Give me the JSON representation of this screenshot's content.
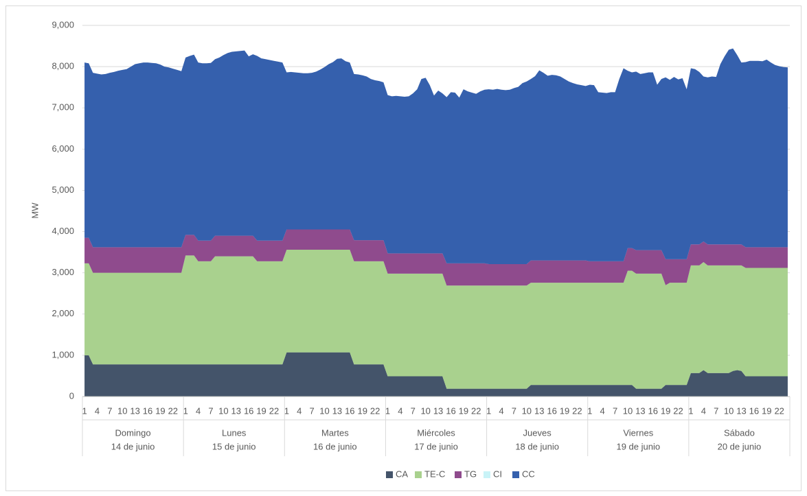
{
  "chart_data": {
    "type": "stacked_area",
    "y_label": "MW",
    "ylim": [
      0,
      9000
    ],
    "yticks": [
      0,
      {
        "value": 1000,
        "label": "1,000"
      },
      {
        "value": 2000,
        "label": "2,000"
      },
      {
        "value": 3000,
        "label": "3,000"
      },
      {
        "value": 4000,
        "label": "4,000"
      },
      {
        "value": 5000,
        "label": "5,000"
      },
      {
        "value": 6000,
        "label": "6,000"
      },
      {
        "value": 7000,
        "label": "7,000"
      },
      {
        "value": 8000,
        "label": "8,000"
      },
      {
        "value": 9000,
        "label": "9,000"
      }
    ],
    "grid": true,
    "legend": "bottom",
    "groups": [
      [
        "Domingo",
        "14 de junio"
      ],
      [
        "Lunes",
        "15 de junio"
      ],
      [
        "Martes",
        "16 de junio"
      ],
      [
        "Miércoles",
        "17 de junio"
      ],
      [
        "Jueves",
        "18 de junio"
      ],
      [
        "Viernes",
        "19 de junio"
      ],
      [
        "Sábado",
        "20 de junio"
      ]
    ],
    "categories": [
      "1",
      null,
      null,
      "4",
      null,
      null,
      "7",
      null,
      null,
      "10",
      null,
      null,
      "13",
      null,
      null,
      "16",
      null,
      null,
      "19",
      null,
      null,
      "22",
      null,
      null,
      "1",
      null,
      null,
      "4",
      null,
      null,
      "7",
      null,
      null,
      "10",
      null,
      null,
      "13",
      null,
      null,
      "16",
      null,
      null,
      "19",
      null,
      null,
      "22",
      null,
      null,
      "1",
      null,
      null,
      "4",
      null,
      null,
      "7",
      null,
      null,
      "10",
      null,
      null,
      "13",
      null,
      null,
      "16",
      null,
      null,
      "19",
      null,
      null,
      "22",
      null,
      null,
      "1",
      null,
      null,
      "4",
      null,
      null,
      "7",
      null,
      null,
      "10",
      null,
      null,
      "13",
      null,
      null,
      "16",
      null,
      null,
      "19",
      null,
      null,
      "22",
      null,
      null,
      "1",
      null,
      null,
      "4",
      null,
      null,
      "7",
      null,
      null,
      "10",
      null,
      null,
      "13",
      null,
      null,
      "16",
      null,
      null,
      "19",
      null,
      null,
      "22",
      null,
      null,
      "1",
      null,
      null,
      "4",
      null,
      null,
      "7",
      null,
      null,
      "10",
      null,
      null,
      "13",
      null,
      null,
      "16",
      null,
      null,
      "19",
      null,
      null,
      "22",
      null,
      null,
      "1",
      null,
      null,
      "4",
      null,
      null,
      "7",
      null,
      null,
      "10",
      null,
      null,
      "13",
      null,
      null,
      "16",
      null,
      null,
      "19",
      null,
      null,
      "22",
      null,
      null
    ],
    "series": [
      {
        "name": "CA",
        "color": "#44546a",
        "values": [
          1000,
          1000,
          780,
          780,
          780,
          780,
          780,
          780,
          780,
          780,
          780,
          780,
          780,
          780,
          780,
          780,
          780,
          780,
          780,
          780,
          780,
          780,
          780,
          780,
          780,
          780,
          780,
          780,
          780,
          780,
          780,
          780,
          780,
          780,
          780,
          780,
          780,
          780,
          780,
          780,
          780,
          780,
          780,
          780,
          780,
          780,
          780,
          780,
          1070,
          1070,
          1070,
          1070,
          1070,
          1070,
          1070,
          1070,
          1070,
          1070,
          1070,
          1070,
          1070,
          1070,
          1070,
          1070,
          780,
          780,
          780,
          780,
          780,
          780,
          780,
          780,
          490,
          490,
          490,
          490,
          490,
          490,
          490,
          490,
          490,
          490,
          490,
          490,
          490,
          490,
          190,
          190,
          190,
          190,
          190,
          190,
          190,
          190,
          190,
          190,
          190,
          190,
          190,
          190,
          190,
          190,
          190,
          190,
          190,
          190,
          280,
          280,
          280,
          280,
          280,
          280,
          280,
          280,
          280,
          280,
          280,
          280,
          280,
          280,
          280,
          280,
          280,
          280,
          280,
          280,
          280,
          280,
          280,
          280,
          280,
          190,
          190,
          190,
          190,
          190,
          190,
          190,
          280,
          280,
          280,
          280,
          280,
          280,
          570,
          570,
          570,
          640,
          570,
          570,
          570,
          570,
          570,
          570,
          620,
          640,
          620,
          490,
          490,
          490,
          490,
          490,
          490,
          490,
          490,
          490,
          490,
          490
        ]
      },
      {
        "name": "TE-C",
        "color": "#a9d18e",
        "values": [
          2230,
          2230,
          2220,
          2220,
          2220,
          2220,
          2220,
          2220,
          2220,
          2220,
          2220,
          2220,
          2220,
          2220,
          2220,
          2220,
          2220,
          2220,
          2220,
          2220,
          2220,
          2220,
          2220,
          2220,
          2640,
          2640,
          2640,
          2500,
          2500,
          2500,
          2500,
          2620,
          2620,
          2620,
          2620,
          2620,
          2620,
          2620,
          2620,
          2620,
          2620,
          2500,
          2500,
          2500,
          2500,
          2500,
          2500,
          2500,
          2490,
          2490,
          2490,
          2490,
          2490,
          2490,
          2490,
          2490,
          2490,
          2490,
          2490,
          2490,
          2490,
          2490,
          2490,
          2490,
          2500,
          2500,
          2500,
          2500,
          2500,
          2500,
          2500,
          2500,
          2490,
          2490,
          2490,
          2490,
          2490,
          2490,
          2490,
          2490,
          2490,
          2490,
          2490,
          2490,
          2490,
          2490,
          2500,
          2500,
          2500,
          2500,
          2500,
          2500,
          2500,
          2500,
          2500,
          2500,
          2500,
          2500,
          2500,
          2500,
          2500,
          2500,
          2500,
          2500,
          2500,
          2500,
          2480,
          2480,
          2480,
          2480,
          2480,
          2480,
          2480,
          2480,
          2480,
          2480,
          2480,
          2480,
          2480,
          2480,
          2480,
          2480,
          2480,
          2480,
          2480,
          2480,
          2480,
          2480,
          2480,
          2770,
          2770,
          2790,
          2790,
          2790,
          2790,
          2790,
          2790,
          2790,
          2420,
          2480,
          2480,
          2480,
          2480,
          2480,
          2610,
          2610,
          2610,
          2620,
          2610,
          2610,
          2610,
          2610,
          2610,
          2610,
          2560,
          2540,
          2560,
          2630,
          2630,
          2630,
          2630,
          2630,
          2630,
          2630,
          2630,
          2630,
          2630,
          2630
        ]
      },
      {
        "name": "TG",
        "color": "#8f4b8d",
        "values": [
          620,
          620,
          620,
          620,
          620,
          620,
          620,
          620,
          620,
          620,
          620,
          620,
          620,
          620,
          620,
          620,
          620,
          620,
          620,
          620,
          620,
          620,
          620,
          620,
          500,
          500,
          500,
          500,
          500,
          500,
          500,
          500,
          500,
          500,
          500,
          500,
          500,
          500,
          500,
          500,
          500,
          500,
          500,
          500,
          500,
          500,
          500,
          500,
          490,
          490,
          490,
          490,
          490,
          490,
          490,
          490,
          490,
          490,
          490,
          490,
          490,
          490,
          490,
          490,
          510,
          510,
          510,
          510,
          510,
          510,
          510,
          510,
          490,
          490,
          490,
          490,
          490,
          490,
          490,
          490,
          490,
          490,
          490,
          490,
          490,
          490,
          540,
          540,
          540,
          540,
          540,
          540,
          540,
          540,
          540,
          540,
          520,
          520,
          520,
          520,
          520,
          520,
          520,
          520,
          520,
          520,
          540,
          540,
          540,
          540,
          540,
          540,
          540,
          540,
          540,
          540,
          540,
          540,
          540,
          540,
          520,
          520,
          520,
          520,
          520,
          520,
          520,
          520,
          520,
          550,
          550,
          570,
          570,
          570,
          570,
          570,
          570,
          570,
          630,
          570,
          570,
          570,
          570,
          570,
          510,
          510,
          510,
          500,
          510,
          510,
          510,
          510,
          510,
          510,
          510,
          510,
          510,
          500,
          500,
          500,
          500,
          500,
          500,
          500,
          500,
          500,
          500,
          500
        ]
      },
      {
        "name": "CI",
        "color": "#c9f3f7",
        "values": [
          0,
          0,
          0,
          0,
          0,
          0,
          0,
          0,
          0,
          0,
          0,
          0,
          0,
          0,
          0,
          0,
          0,
          0,
          0,
          0,
          0,
          0,
          0,
          0,
          0,
          0,
          0,
          0,
          0,
          0,
          0,
          0,
          0,
          0,
          0,
          0,
          0,
          0,
          0,
          0,
          0,
          0,
          0,
          0,
          0,
          0,
          0,
          0,
          0,
          0,
          0,
          0,
          0,
          0,
          0,
          0,
          0,
          0,
          0,
          0,
          0,
          0,
          0,
          0,
          0,
          0,
          0,
          0,
          0,
          0,
          0,
          0,
          0,
          0,
          0,
          0,
          0,
          0,
          0,
          0,
          0,
          0,
          0,
          0,
          0,
          0,
          0,
          0,
          0,
          0,
          0,
          0,
          0,
          0,
          0,
          0,
          0,
          0,
          0,
          0,
          0,
          0,
          0,
          0,
          0,
          0,
          0,
          0,
          0,
          0,
          0,
          0,
          0,
          0,
          0,
          0,
          0,
          0,
          0,
          0,
          0,
          0,
          0,
          0,
          0,
          0,
          0,
          0,
          0,
          0,
          0,
          0,
          0,
          0,
          0,
          0,
          0,
          0,
          0,
          0,
          0,
          0,
          0,
          0,
          0,
          0,
          0,
          0,
          0,
          0,
          0,
          0,
          0,
          0,
          0,
          0,
          0,
          0,
          0,
          0,
          0,
          0,
          0,
          0,
          0,
          0,
          0,
          0
        ]
      },
      {
        "name": "CC",
        "color": "#3560ad",
        "values": [
          4250,
          4230,
          4230,
          4210,
          4190,
          4200,
          4230,
          4250,
          4280,
          4300,
          4320,
          4380,
          4440,
          4460,
          4480,
          4480,
          4470,
          4460,
          4430,
          4380,
          4360,
          4330,
          4300,
          4270,
          4300,
          4340,
          4370,
          4320,
          4300,
          4300,
          4310,
          4280,
          4320,
          4380,
          4430,
          4460,
          4470,
          4480,
          4490,
          4350,
          4400,
          4480,
          4420,
          4400,
          4380,
          4360,
          4340,
          4320,
          3810,
          3820,
          3810,
          3800,
          3790,
          3790,
          3800,
          3830,
          3880,
          3940,
          4010,
          4060,
          4140,
          4150,
          4080,
          4050,
          4030,
          4020,
          4000,
          3970,
          3910,
          3880,
          3860,
          3830,
          3840,
          3810,
          3820,
          3810,
          3800,
          3810,
          3880,
          3980,
          4230,
          4260,
          4080,
          3830,
          3950,
          3880,
          4030,
          4150,
          4140,
          4020,
          4220,
          4170,
          4140,
          4110,
          4170,
          4210,
          4240,
          4230,
          4250,
          4230,
          4220,
          4230,
          4270,
          4300,
          4390,
          4430,
          4400,
          4470,
          4610,
          4550,
          4480,
          4500,
          4490,
          4460,
          4400,
          4340,
          4300,
          4270,
          4250,
          4230,
          4280,
          4270,
          4100,
          4090,
          4080,
          4100,
          4100,
          4420,
          4680,
          4300,
          4260,
          4330,
          4270,
          4290,
          4310,
          4310,
          4010,
          4150,
          4410,
          4350,
          4420,
          4360,
          4390,
          4120,
          4270,
          4250,
          4180,
          4000,
          4050,
          4070,
          4060,
          4370,
          4560,
          4720,
          4750,
          4590,
          4410,
          4490,
          4520,
          4520,
          4520,
          4510,
          4550,
          4480,
          4420,
          4390,
          4370,
          4360
        ]
      }
    ]
  }
}
